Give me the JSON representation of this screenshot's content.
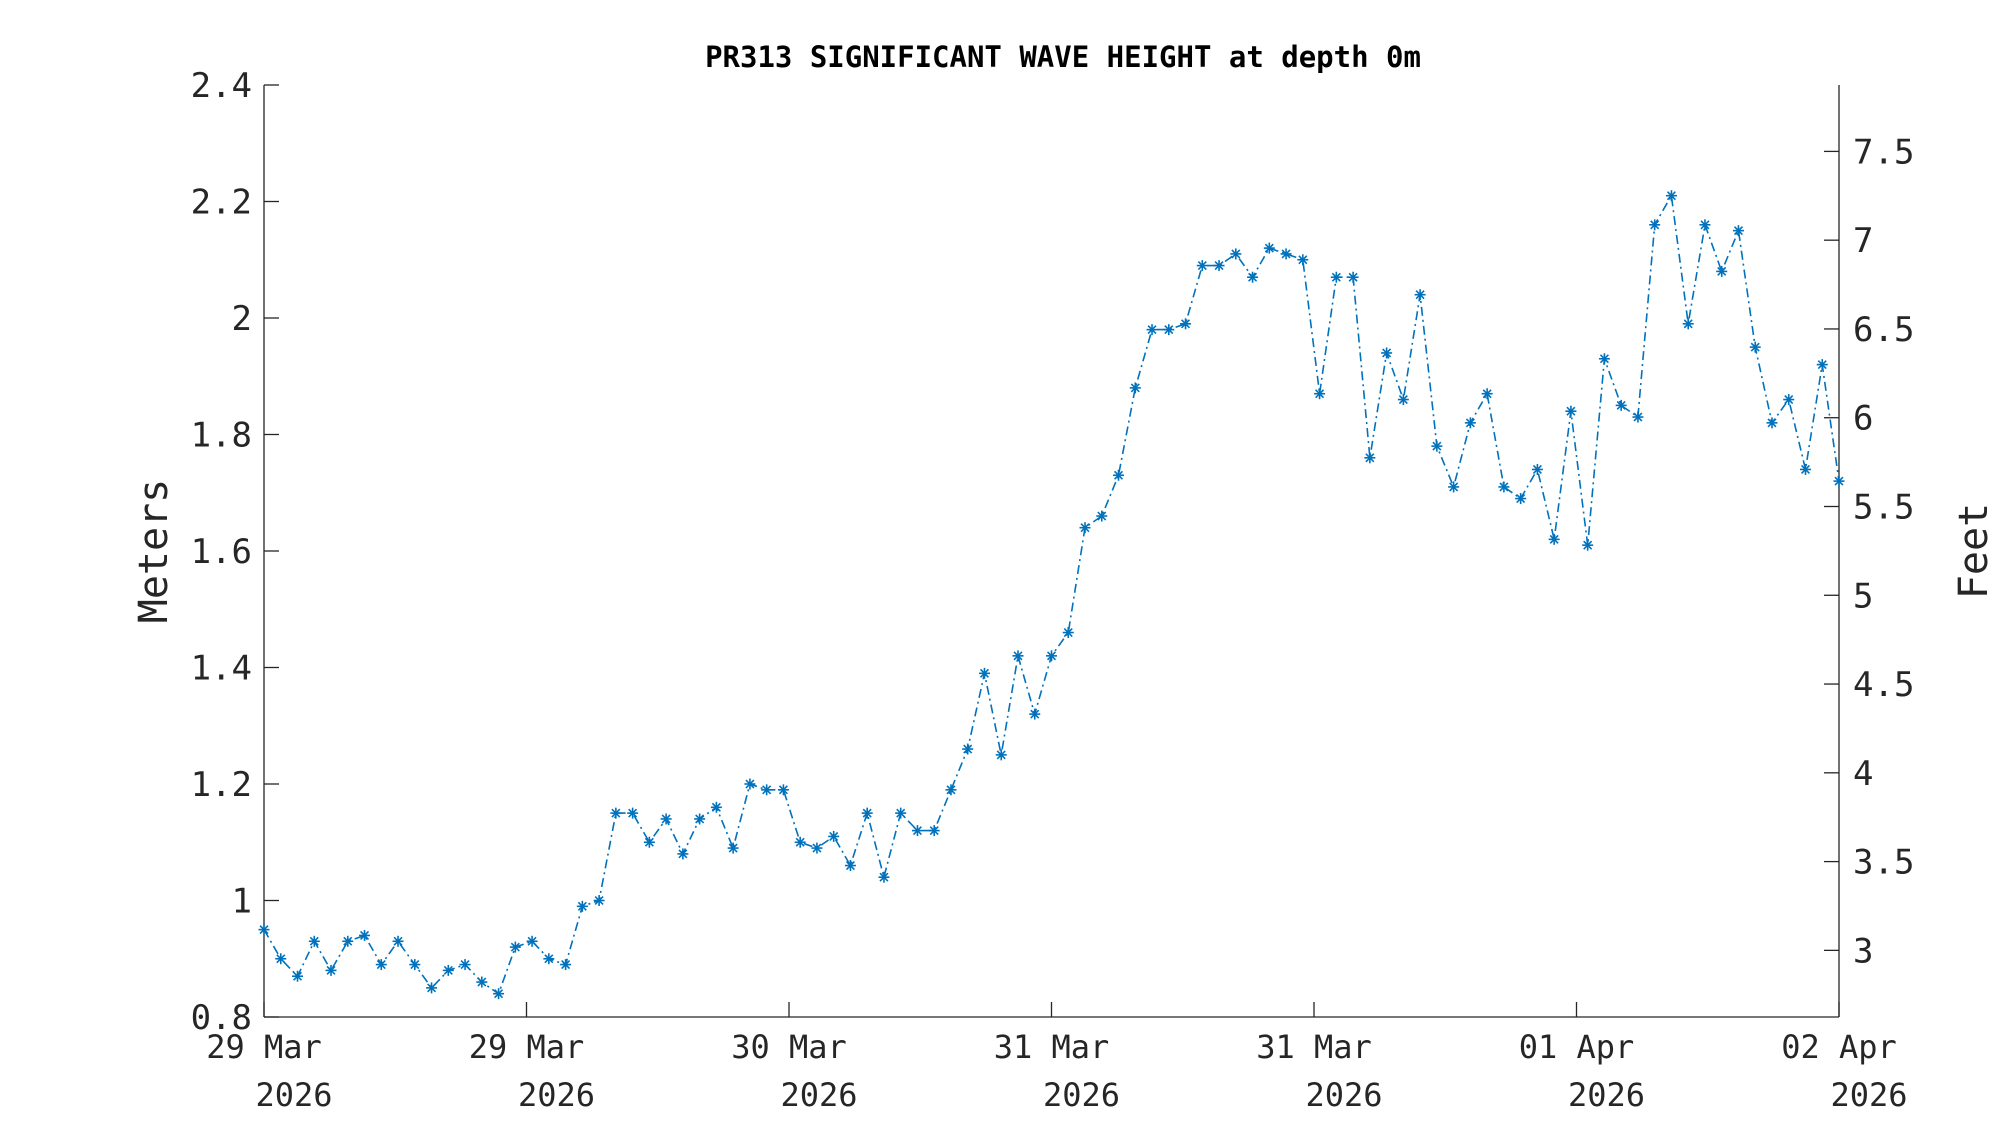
{
  "chart_data": {
    "type": "line",
    "title": "PR313 SIGNIFICANT WAVE HEIGHT at depth 0m",
    "ylabel": "Meters",
    "ylabel_right": "Feet",
    "xlabel": "",
    "ylim": [
      0.8,
      2.4
    ],
    "ylim_right_feet": [
      2.62467,
      7.87402
    ],
    "y_ticks": [
      "0.8",
      "1",
      "1.2",
      "1.4",
      "1.6",
      "1.8",
      "2",
      "2.2",
      "2.4"
    ],
    "y_tick_values": [
      0.8,
      1.0,
      1.2,
      1.4,
      1.6,
      1.8,
      2.0,
      2.2,
      2.4
    ],
    "y_ticks_right": [
      "3",
      "3.5",
      "4",
      "4.5",
      "5",
      "5.5",
      "6",
      "6.5",
      "7",
      "7.5"
    ],
    "y_tick_values_right": [
      3,
      3.5,
      4,
      4.5,
      5,
      5.5,
      6,
      6.5,
      7,
      7.5
    ],
    "x_ticks": [
      {
        "line1": "29 Mar",
        "line2": "2026"
      },
      {
        "line1": "29 Mar",
        "line2": "2026"
      },
      {
        "line1": "30 Mar",
        "line2": "2026"
      },
      {
        "line1": "31 Mar",
        "line2": "2026"
      },
      {
        "line1": "31 Mar",
        "line2": "2026"
      },
      {
        "line1": "01 Apr",
        "line2": "2026"
      },
      {
        "line1": "02 Apr",
        "line2": "2026"
      }
    ],
    "grid": false,
    "legend": "none",
    "color": "#0072BD",
    "marker": "asterisk",
    "line_style": "dash-dot",
    "series": [
      {
        "values": [
          0.95,
          0.9,
          0.87,
          0.93,
          0.88,
          0.93,
          0.94,
          0.89,
          0.93,
          0.89,
          0.85,
          0.88,
          0.89,
          0.86,
          0.84,
          0.92,
          0.93,
          0.9,
          0.89,
          0.99,
          1.0,
          1.15,
          1.15,
          1.1,
          1.14,
          1.08,
          1.14,
          1.16,
          1.09,
          1.2,
          1.19,
          1.19,
          1.1,
          1.09,
          1.11,
          1.06,
          1.15,
          1.04,
          1.15,
          1.12,
          1.12,
          1.19,
          1.26,
          1.39,
          1.25,
          1.42,
          1.32,
          1.42,
          1.46,
          1.64,
          1.66,
          1.73,
          1.88,
          1.98,
          1.98,
          1.99,
          2.09,
          2.09,
          2.11,
          2.07,
          2.12,
          2.11,
          2.1,
          1.87,
          2.07,
          2.07,
          1.76,
          1.94,
          1.86,
          2.04,
          1.78,
          1.71,
          1.82,
          1.87,
          1.71,
          1.69,
          1.74,
          1.62,
          1.84,
          1.61,
          1.93,
          1.85,
          1.83,
          2.16,
          2.21,
          1.99,
          2.16,
          2.08,
          2.15,
          1.95,
          1.82,
          1.86,
          1.74,
          1.92,
          1.72
        ]
      }
    ]
  }
}
